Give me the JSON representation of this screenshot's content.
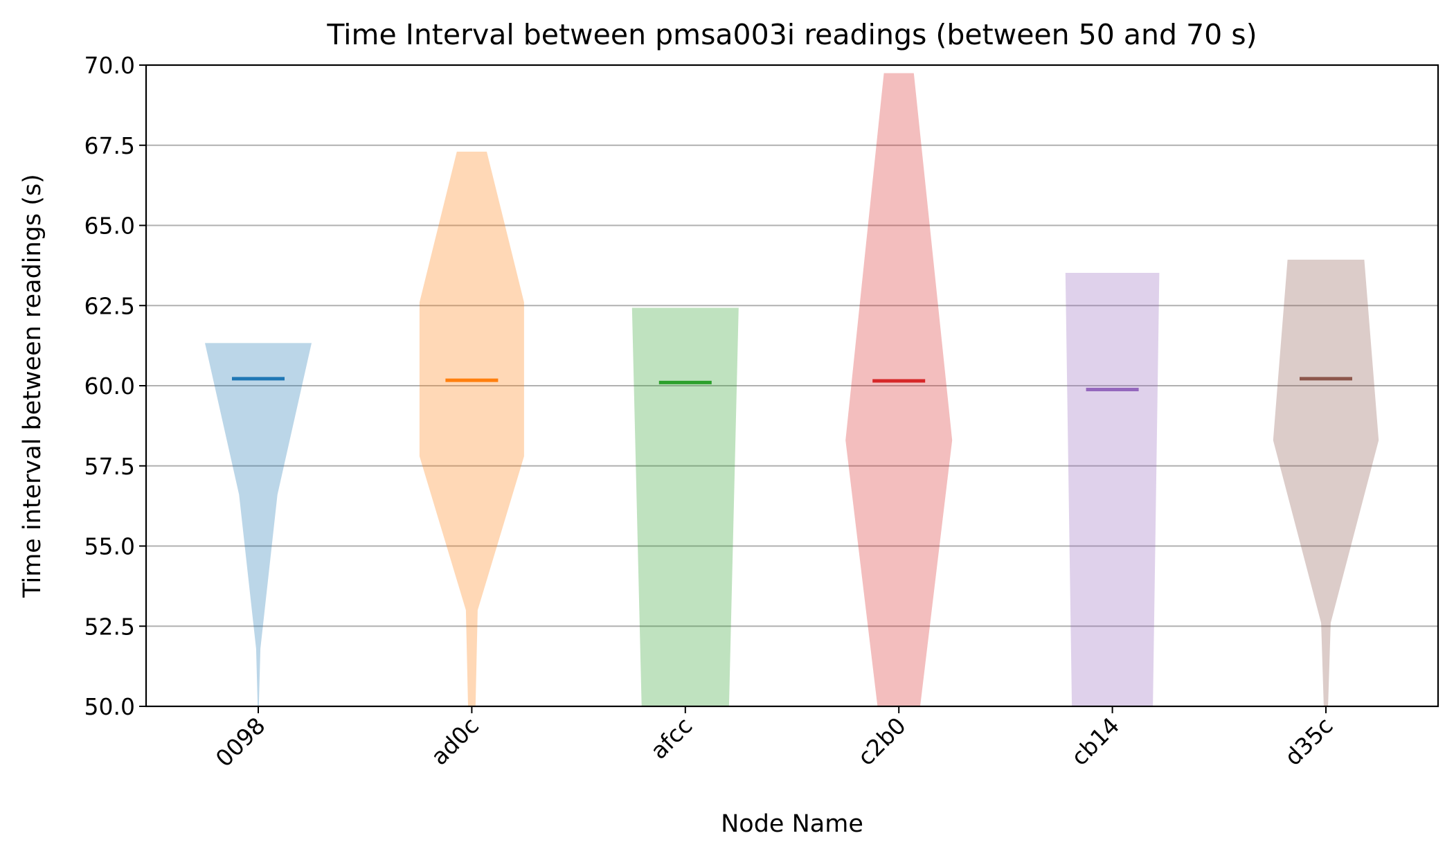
{
  "chart_data": {
    "type": "violin",
    "title": "Time Interval between pmsa003i readings (between 50 and 70 s)",
    "xlabel": "Node Name",
    "ylabel": "Time interval between readings (s)",
    "ylim": [
      50,
      70
    ],
    "yticks": [
      "50.0",
      "52.5",
      "55.0",
      "57.5",
      "60.0",
      "62.5",
      "65.0",
      "67.5",
      "70.0"
    ],
    "grid": "y",
    "categories": [
      "0098",
      "ad0c",
      "afcc",
      "c2b0",
      "cb14",
      "d35c"
    ],
    "series": [
      {
        "category": "0098",
        "color": "#1f77b4",
        "median": 60.22,
        "min": 50.0,
        "max": 61.33,
        "density": [
          [
            50.0,
            0.01
          ],
          [
            51.8,
            0.04
          ],
          [
            56.6,
            0.36
          ],
          [
            61.33,
            1.0
          ]
        ]
      },
      {
        "category": "ad0c",
        "color": "#ff7f0e",
        "median": 60.17,
        "min": 50.0,
        "max": 67.3,
        "density": [
          [
            50.0,
            0.07
          ],
          [
            53.0,
            0.11
          ],
          [
            57.8,
            0.98
          ],
          [
            62.6,
            0.98
          ],
          [
            67.3,
            0.28
          ]
        ]
      },
      {
        "category": "afcc",
        "color": "#2ca02c",
        "median": 60.1,
        "min": 50.0,
        "max": 62.43,
        "density": [
          [
            50.0,
            0.82
          ],
          [
            62.43,
            1.0
          ]
        ]
      },
      {
        "category": "c2b0",
        "color": "#d62728",
        "median": 60.15,
        "min": 50.0,
        "max": 69.75,
        "density": [
          [
            50.0,
            0.4
          ],
          [
            58.3,
            1.0
          ],
          [
            69.75,
            0.28
          ]
        ]
      },
      {
        "category": "cb14",
        "color": "#9467bd",
        "median": 59.88,
        "min": 50.0,
        "max": 63.52,
        "density": [
          [
            50.0,
            0.76
          ],
          [
            63.52,
            0.88
          ]
        ]
      },
      {
        "category": "d35c",
        "color": "#8c564b",
        "median": 60.22,
        "min": 50.0,
        "max": 63.93,
        "density": [
          [
            50.0,
            0.04
          ],
          [
            52.6,
            0.09
          ],
          [
            58.3,
            0.99
          ],
          [
            63.93,
            0.72
          ]
        ]
      }
    ]
  }
}
